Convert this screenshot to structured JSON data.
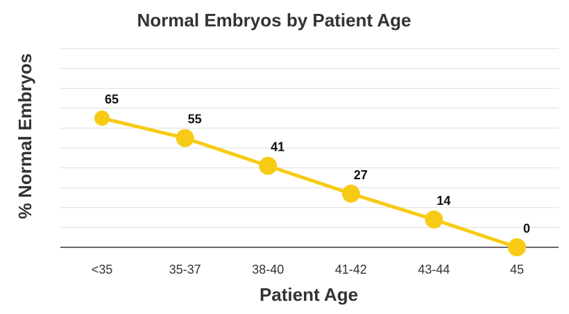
{
  "chart_data": {
    "type": "line",
    "title": "Normal Embryos by Patient  Age",
    "xlabel": "Patient Age",
    "ylabel": "% Normal Embryos",
    "categories": [
      "<35",
      "35-37",
      "38-40",
      "41-42",
      "43-44",
      "45"
    ],
    "series": [
      {
        "values": [
          65,
          55,
          41,
          27,
          14,
          0
        ],
        "color": "#F7CB15"
      }
    ],
    "data_labels": [
      "65",
      "55",
      "41",
      "27",
      "14",
      "0"
    ],
    "ylim": [
      0,
      100
    ],
    "y_tick_step": 10,
    "grid": true,
    "y_tick_labels_shown": false,
    "legend": "none",
    "colors": {
      "line": "#F7CB15",
      "grid": "#dddddd",
      "baseline": "#333333",
      "text": "#333333"
    }
  }
}
